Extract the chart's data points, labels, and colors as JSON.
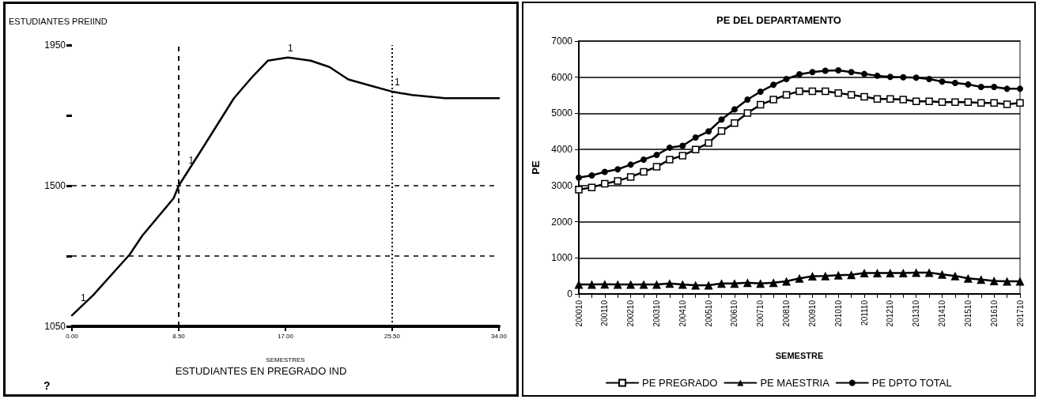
{
  "chart_data": [
    {
      "type": "line",
      "ylabel": "ESTUDIANTES PREIIND",
      "xlabel": "SEMESTRES",
      "annotations": [
        "ESTUDIANTES EN PREGRADO IND",
        "?",
        {
          "text": "1",
          "x": 0.9,
          "y": 1110
        },
        {
          "text": "1",
          "x": 9.5,
          "y": 1550
        },
        {
          "text": "1",
          "x": 17.4,
          "y": 1910
        },
        {
          "text": "1",
          "x": 25.9,
          "y": 1800
        }
      ],
      "x": [
        0,
        1.7,
        4.6,
        5.6,
        8.1,
        8.5,
        10.4,
        12.9,
        14.4,
        15.6,
        17.2,
        19.0,
        20.5,
        22.0,
        23.8,
        25.6,
        27.1,
        29.7,
        33.5,
        34
      ],
      "series": [
        {
          "color": "#000000",
          "values": [
            1085,
            1150,
            1280,
            1340,
            1460,
            1500,
            1620,
            1780,
            1850,
            1900,
            1910,
            1900,
            1880,
            1840,
            1820,
            1800,
            1790,
            1780,
            1780,
            1780
          ]
        }
      ],
      "xlim": [
        0,
        34
      ],
      "xticks": [
        {
          "value": 0,
          "label": "0.00"
        },
        {
          "value": 8.5,
          "label": "8.50"
        },
        {
          "value": 17,
          "label": "17.00"
        },
        {
          "value": 25.5,
          "label": "25.50"
        },
        {
          "value": 34,
          "label": "34.00"
        }
      ],
      "ylim": [
        1050,
        1950
      ],
      "yticks": [
        1050,
        {
          "value": 1275,
          "label": null
        },
        1500,
        {
          "value": 1725,
          "label": null
        },
        1950
      ],
      "ref_lines": [
        {
          "axis": "x",
          "value": 8.5,
          "line_style": "dashed"
        },
        {
          "axis": "x",
          "value": 25.5,
          "line_style": "dotted"
        },
        {
          "axis": "y",
          "value": 1500,
          "line_style": "dashed"
        },
        {
          "axis": "y",
          "value": 1275,
          "line_style": "dashed"
        }
      ],
      "grid": false,
      "marker": "none",
      "line_style": "solid"
    },
    {
      "type": "line",
      "title": "PE DEL DEPARTAMENTO",
      "xlabel": "SEMESTRE",
      "ylabel": "PE",
      "categories": [
        "200010",
        null,
        "200110",
        null,
        "200210",
        null,
        "200310",
        null,
        "200410",
        null,
        "200510",
        null,
        "200610",
        null,
        "200710",
        null,
        "200810",
        null,
        "200910",
        null,
        "201010",
        null,
        "201110",
        null,
        "201210",
        null,
        "201310",
        null,
        "201410",
        null,
        "201510",
        null,
        "201610",
        null,
        "201710"
      ],
      "series": [
        {
          "name": "PE PREGRADO",
          "color": "#000000",
          "marker": "square",
          "values": [
            2890,
            2950,
            3050,
            3130,
            3240,
            3380,
            3520,
            3720,
            3830,
            4000,
            4180,
            4510,
            4730,
            5010,
            5240,
            5380,
            5510,
            5610,
            5610,
            5610,
            5560,
            5510,
            5460,
            5400,
            5400,
            5380,
            5330,
            5330,
            5310,
            5310,
            5310,
            5290,
            5290,
            5250,
            5290
          ]
        },
        {
          "name": "PE MAESTRIA",
          "color": "#000000",
          "marker": "triangle",
          "values": [
            260,
            260,
            270,
            260,
            260,
            260,
            260,
            290,
            260,
            240,
            240,
            290,
            290,
            310,
            290,
            310,
            350,
            430,
            490,
            500,
            520,
            530,
            580,
            580,
            580,
            580,
            590,
            590,
            540,
            500,
            430,
            400,
            360,
            350,
            350
          ]
        },
        {
          "name": "PE DPTO TOTAL",
          "color": "#000000",
          "marker": "circle",
          "values": [
            3220,
            3280,
            3380,
            3450,
            3580,
            3720,
            3850,
            4050,
            4100,
            4330,
            4500,
            4830,
            5110,
            5380,
            5600,
            5790,
            5950,
            6080,
            6140,
            6180,
            6190,
            6140,
            6090,
            6040,
            6010,
            6000,
            5990,
            5950,
            5880,
            5840,
            5800,
            5730,
            5730,
            5680,
            5680
          ]
        }
      ],
      "ylim": [
        0,
        7000
      ],
      "yticks": [
        0,
        1000,
        2000,
        3000,
        4000,
        5000,
        6000,
        7000
      ],
      "grid": "y",
      "legend": "bottom",
      "line_style": "solid"
    }
  ]
}
